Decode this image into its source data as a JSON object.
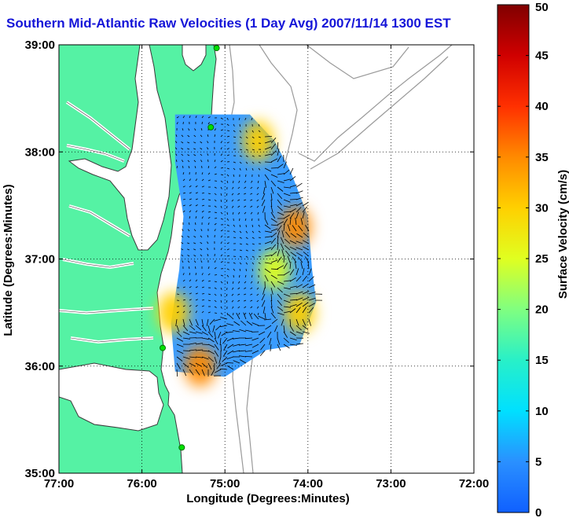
{
  "chart_data": {
    "type": "heatmap",
    "title": "Southern Mid-Atlantic Raw Velocities (1 Day Avg) 2007/11/14 1300 EST",
    "xlabel": "Longitude (Degrees:Minutes)",
    "ylabel": "Latitude (Degrees:Minutes)",
    "xlim": [
      -77,
      -72
    ],
    "ylim": [
      35,
      39
    ],
    "x_ticks": [
      {
        "value": -77,
        "label": "77:00"
      },
      {
        "value": -76,
        "label": "76:00"
      },
      {
        "value": -75,
        "label": "75:00"
      },
      {
        "value": -74,
        "label": "74:00"
      },
      {
        "value": -73,
        "label": "73:00"
      },
      {
        "value": -72,
        "label": "72:00"
      }
    ],
    "y_ticks": [
      {
        "value": 35,
        "label": "35:00"
      },
      {
        "value": 36,
        "label": "36:00"
      },
      {
        "value": 37,
        "label": "37:00"
      },
      {
        "value": 38,
        "label": "38:00"
      },
      {
        "value": 39,
        "label": "39:00"
      }
    ],
    "grid": true,
    "colorbar": {
      "label": "Surface Velocity (cm/s)",
      "min": 0,
      "max": 50,
      "ticks": [
        0,
        5,
        10,
        15,
        20,
        25,
        30,
        35,
        40,
        45,
        50
      ]
    },
    "coverage_outline": [
      [
        -75.6,
        38.35
      ],
      [
        -74.7,
        38.35
      ],
      [
        -74.4,
        38.1
      ],
      [
        -74.2,
        37.8
      ],
      [
        -74.0,
        37.4
      ],
      [
        -73.95,
        36.9
      ],
      [
        -73.9,
        36.6
      ],
      [
        -74.1,
        36.2
      ],
      [
        -74.5,
        36.15
      ],
      [
        -75.0,
        35.9
      ],
      [
        -75.6,
        35.95
      ],
      [
        -75.65,
        36.4
      ],
      [
        -75.55,
        36.9
      ],
      [
        -75.5,
        37.4
      ],
      [
        -75.6,
        37.9
      ]
    ],
    "speed_hotspots": [
      {
        "lon": -74.6,
        "lat": 38.1,
        "speed": 32
      },
      {
        "lon": -74.15,
        "lat": 37.3,
        "speed": 34
      },
      {
        "lon": -74.4,
        "lat": 36.9,
        "speed": 24
      },
      {
        "lon": -74.1,
        "lat": 36.5,
        "speed": 30
      },
      {
        "lon": -75.3,
        "lat": 36.0,
        "speed": 36
      },
      {
        "lon": -75.62,
        "lat": 36.5,
        "speed": 30
      }
    ],
    "station_markers": [
      {
        "lon": -75.1,
        "lat": 38.97
      },
      {
        "lon": -75.17,
        "lat": 38.23
      },
      {
        "lon": -75.75,
        "lat": 36.17
      },
      {
        "lon": -75.52,
        "lat": 35.24
      }
    ]
  },
  "colors": {
    "land": "#55f2a4",
    "land_outline": "#3a3a3a",
    "isobath": "#9a9a9a",
    "marker": "#00e000",
    "title": "#1515d8"
  }
}
